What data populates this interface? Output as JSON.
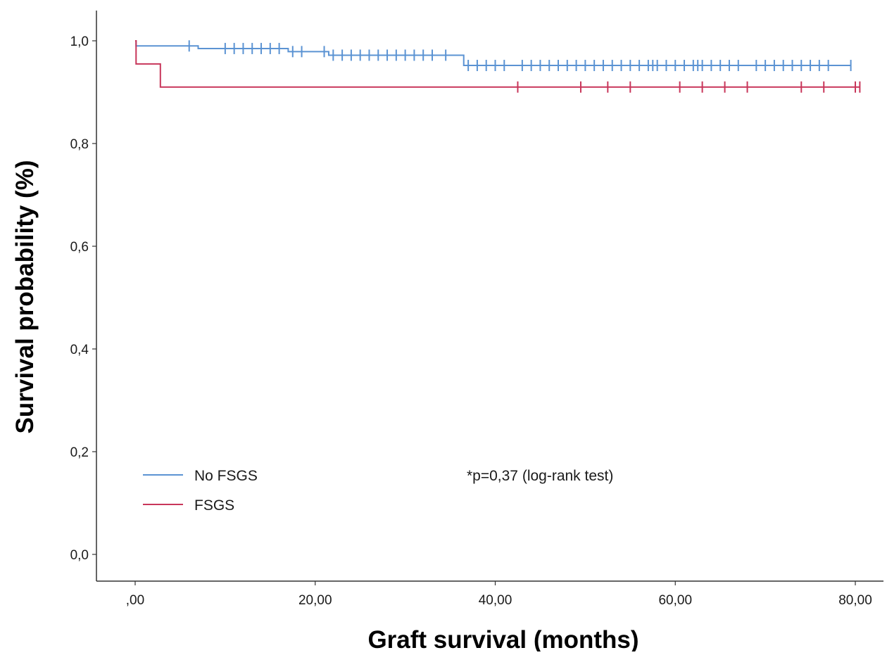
{
  "chart_data": {
    "type": "line",
    "subtype": "kaplan-meier",
    "title": "",
    "xlabel": "Graft survival (months)",
    "ylabel": "Survival probability (%)",
    "xlim": [
      -4,
      83
    ],
    "ylim": [
      -0.06,
      1.05
    ],
    "x_ticks": [
      0,
      20,
      40,
      60,
      80
    ],
    "x_tick_labels": [
      ",00",
      "20,00",
      "40,00",
      "60,00",
      "80,00"
    ],
    "y_ticks": [
      0,
      0.2,
      0.4,
      0.6,
      0.8,
      1.0
    ],
    "y_tick_labels": [
      "0,0",
      "0,2",
      "0,4",
      "0,6",
      "0,8",
      "1,0"
    ],
    "grid": false,
    "legend_position": "bottom-left",
    "annotation": "*p=0,37 (log-rank test)",
    "series": [
      {
        "name": "No FSGS",
        "color": "#5b93d3",
        "steps": [
          [
            0,
            1.0
          ],
          [
            0.1,
            0.99
          ],
          [
            7,
            0.985
          ],
          [
            17,
            0.979
          ],
          [
            21.5,
            0.972
          ],
          [
            36.5,
            0.952
          ],
          [
            79.5,
            0.952
          ]
        ],
        "censored": [
          6,
          10,
          11,
          12,
          13,
          14,
          15,
          16,
          17.5,
          18.5,
          21,
          22,
          23,
          24,
          25,
          26,
          27,
          28,
          29,
          30,
          31,
          32,
          33,
          34.5,
          37,
          38,
          39,
          40,
          41,
          43,
          44,
          45,
          46,
          47,
          48,
          49,
          50,
          51,
          52,
          53,
          54,
          55,
          56,
          57,
          57.5,
          58,
          59,
          60,
          61,
          62,
          62.5,
          63,
          64,
          65,
          66,
          67,
          69,
          70,
          71,
          72,
          73,
          74,
          75,
          76,
          77,
          79.5
        ]
      },
      {
        "name": "FSGS",
        "color": "#c8365a",
        "steps": [
          [
            0,
            1.0
          ],
          [
            0.1,
            0.955
          ],
          [
            2.8,
            0.91
          ],
          [
            80.5,
            0.91
          ]
        ],
        "censored": [
          42.5,
          49.5,
          52.5,
          55,
          60.5,
          63,
          65.5,
          68,
          74,
          76.5,
          80,
          80.5
        ]
      }
    ]
  }
}
